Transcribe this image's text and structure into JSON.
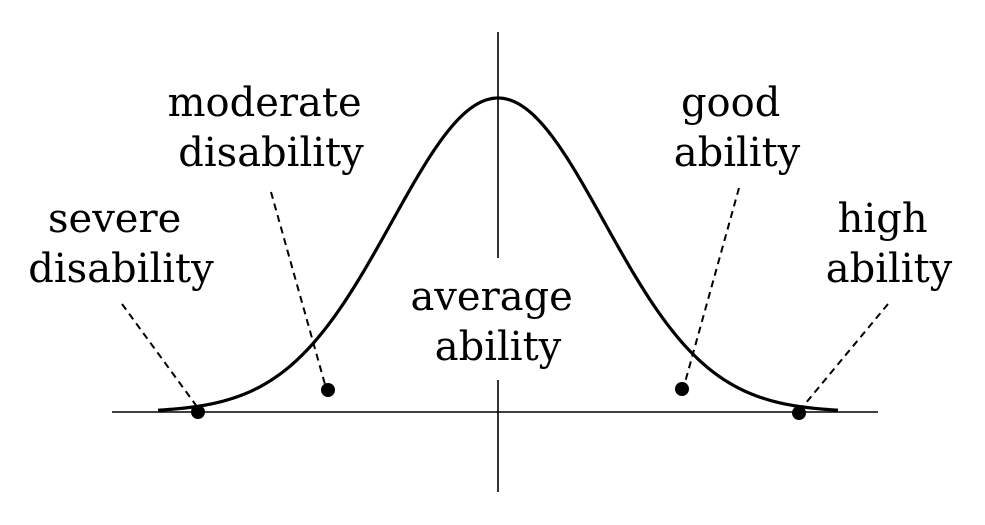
{
  "labels": {
    "severe_disability": [
      "severe",
      "disability"
    ],
    "moderate_disability": [
      "moderate",
      "disability"
    ],
    "average_ability": [
      "average",
      "ability"
    ],
    "good_ability": [
      "good",
      "ability"
    ],
    "high_ability": [
      "high",
      "ability"
    ]
  },
  "colors": {
    "ink": "#000000",
    "background": "#ffffff"
  }
}
